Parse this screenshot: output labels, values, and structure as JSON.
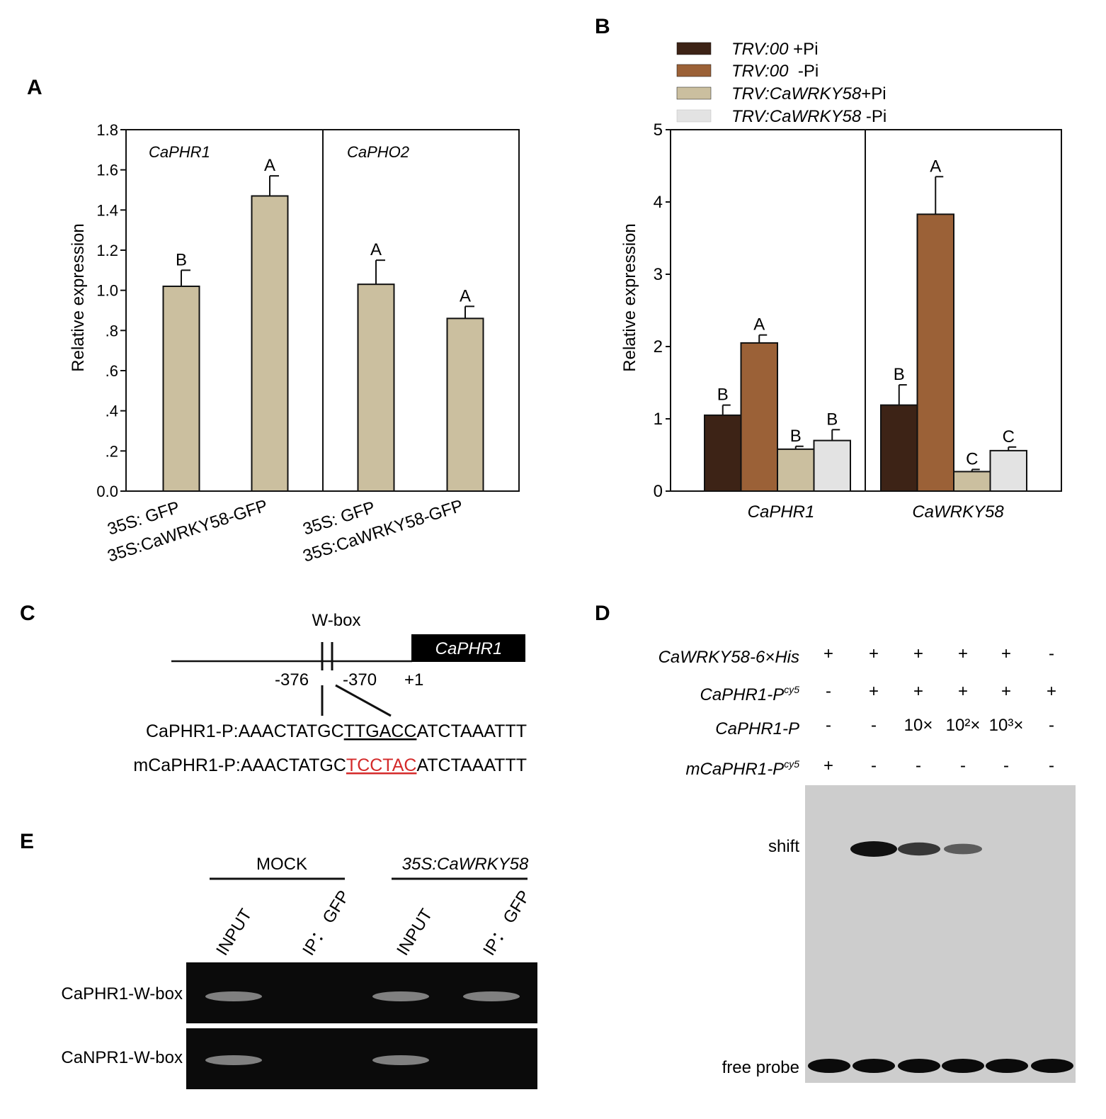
{
  "panels": {
    "A": {
      "letter": "A",
      "ylabel": "Relative expression",
      "y_ticks": [
        "0.0",
        ".2",
        ".4",
        ".6",
        ".8",
        "1.0",
        "1.2",
        "1.4",
        "1.6",
        "1.8"
      ],
      "group_titles": [
        "CaPHR1",
        "CaPHO2"
      ],
      "x_labels": [
        [
          "35S: GFP",
          "35S:CaWRKY58-GFP"
        ],
        [
          "35S: GFP",
          "35S:CaWRKY58-GFP"
        ]
      ]
    },
    "B": {
      "letter": "B",
      "ylabel": "Relative expression",
      "y_ticks": [
        "0",
        "1",
        "2",
        "3",
        "4",
        "5"
      ],
      "groups": [
        "CaPHR1",
        "CaWRKY58"
      ],
      "legend": [
        {
          "name_italic": "TRV:00",
          "suffix": " +Pi",
          "color": "#3d2316"
        },
        {
          "name_italic": "TRV:00",
          "suffix": "  -Pi",
          "color": "#9b6137"
        },
        {
          "name_italic": "TRV:CaWRKY58",
          "suffix": "+Pi",
          "color": "#cbbf9f"
        },
        {
          "name_italic": "TRV:CaWRKY58",
          "suffix": " -Pi",
          "color": "#e3e3e3"
        }
      ]
    },
    "C": {
      "letter": "C",
      "wbox_label": "W-box",
      "gene": "CaPHR1",
      "pos_a": "-376",
      "pos_b": "-370",
      "pos_c": "+1",
      "seq_wt": {
        "prefix": "CaPHR1-P:AAACTATGC",
        "motif": "TTGACC",
        "suffix": "ATCTAAATTT"
      },
      "seq_mut": {
        "prefix": "mCaPHR1-P:AAACTATGC",
        "motif": "TCCTAC",
        "suffix": "ATCTAAATTT"
      },
      "motif_mut_color": "#d42a2a"
    },
    "D": {
      "letter": "D",
      "rows": [
        {
          "label": "CaWRKY58-6×His",
          "sup": "",
          "values": [
            "+",
            "+",
            "+",
            "+",
            "+",
            "-"
          ]
        },
        {
          "label": "CaPHR1-P",
          "sup": "cy5",
          "values": [
            "-",
            "+",
            "+",
            "+",
            "+",
            "+"
          ]
        },
        {
          "label": "CaPHR1-P",
          "sup": "",
          "values": [
            "-",
            "-",
            "10×",
            "10²×",
            "10³×",
            "-"
          ]
        },
        {
          "label": "mCaPHR1-P",
          "sup": "cy5",
          "values": [
            "+",
            "-",
            "-",
            "-",
            "-",
            "-"
          ]
        }
      ],
      "shift_label": "shift",
      "free_probe_label": "free probe",
      "shift_band_intensity": [
        0,
        1.0,
        0.8,
        0.6,
        0,
        0
      ]
    },
    "E": {
      "letter": "E",
      "group_labels": [
        "MOCK",
        "35S:CaWRKY58"
      ],
      "lanes": [
        "INPUT",
        "IP： GFP",
        "INPUT",
        "IP： GFP"
      ],
      "row_labels": [
        "CaPHR1-W-box",
        "CaNPR1-W-box"
      ],
      "band_presence": [
        [
          1,
          0,
          1,
          1
        ],
        [
          1,
          0,
          1,
          0
        ]
      ]
    }
  },
  "chart_data": [
    {
      "type": "bar",
      "panel": "A",
      "ylabel": "Relative expression",
      "ylim": [
        0,
        1.8
      ],
      "groups": [
        "CaPHR1",
        "CaPHO2"
      ],
      "categories": [
        "35S: GFP",
        "35S:CaWRKY58-GFP"
      ],
      "series": [
        {
          "group": "CaPHR1",
          "values": [
            1.02,
            1.47
          ],
          "errors": [
            0.08,
            0.1
          ],
          "letters": [
            "B",
            "A"
          ]
        },
        {
          "group": "CaPHO2",
          "values": [
            1.03,
            0.86
          ],
          "errors": [
            0.12,
            0.06
          ],
          "letters": [
            "A",
            "A"
          ]
        }
      ],
      "bar_color": "#cbbf9f"
    },
    {
      "type": "bar",
      "panel": "B",
      "ylabel": "Relative expression",
      "ylim": [
        0,
        5
      ],
      "categories": [
        "CaPHR1",
        "CaWRKY58"
      ],
      "series": [
        {
          "name": "TRV:00 +Pi",
          "values": [
            1.05,
            1.19
          ],
          "errors": [
            0.14,
            0.28
          ],
          "letters": [
            "B",
            "B"
          ]
        },
        {
          "name": "TRV:00 -Pi",
          "values": [
            2.05,
            3.83
          ],
          "errors": [
            0.11,
            0.52
          ],
          "letters": [
            "A",
            "A"
          ]
        },
        {
          "name": "TRV:CaWRKY58+Pi",
          "values": [
            0.58,
            0.27
          ],
          "errors": [
            0.04,
            0.03
          ],
          "letters": [
            "B",
            "C"
          ]
        },
        {
          "name": "TRV:CaWRKY58 -Pi",
          "values": [
            0.7,
            0.56
          ],
          "errors": [
            0.15,
            0.05
          ],
          "letters": [
            "B",
            "C"
          ]
        }
      ],
      "legend_position": "top"
    }
  ]
}
